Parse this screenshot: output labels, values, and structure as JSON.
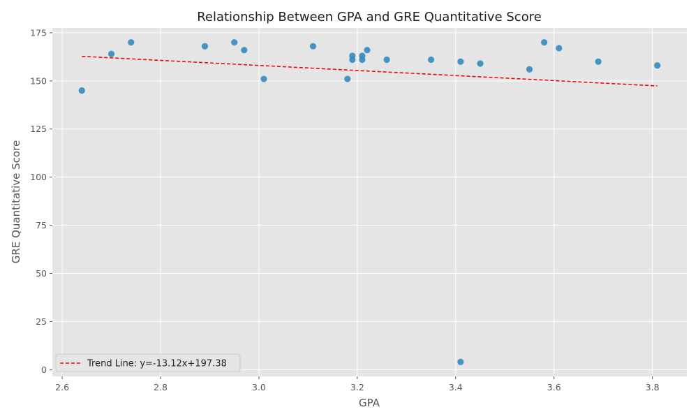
{
  "chart_data": {
    "type": "scatter",
    "title": "Relationship Between GPA and GRE Quantitative Score",
    "xlabel": "GPA",
    "ylabel": "GRE Quantitative Score",
    "xlim": [
      2.58,
      3.87
    ],
    "ylim": [
      -3.5,
      177.5
    ],
    "x_ticks": [
      2.6,
      2.8,
      3.0,
      3.2,
      3.4,
      3.6,
      3.8
    ],
    "y_ticks": [
      0,
      25,
      50,
      75,
      100,
      125,
      150,
      175
    ],
    "grid": true,
    "legend_position": "lower-left",
    "colors": {
      "background": "#e5e5e5",
      "grid": "#ffffff",
      "points": "#348abd",
      "trend": "#ff0000"
    },
    "series": [
      {
        "x": [
          2.64,
          2.7,
          2.74,
          2.89,
          2.95,
          2.97,
          3.01,
          3.11,
          3.18,
          3.19,
          3.19,
          3.21,
          3.21,
          3.22,
          3.26,
          3.35,
          3.41,
          3.41,
          3.45,
          3.55,
          3.58,
          3.61,
          3.69,
          3.81
        ],
        "y": [
          145,
          164,
          170,
          168,
          170,
          166,
          151,
          168,
          151,
          161,
          163,
          161,
          163,
          166,
          161,
          161,
          160,
          4,
          159,
          156,
          170,
          167,
          160,
          158
        ]
      }
    ],
    "trend_line": {
      "name": "Trend Line: y=-13.12x+197.38",
      "slope": -13.12,
      "intercept": 197.38,
      "x_range": [
        2.64,
        3.81
      ]
    }
  }
}
